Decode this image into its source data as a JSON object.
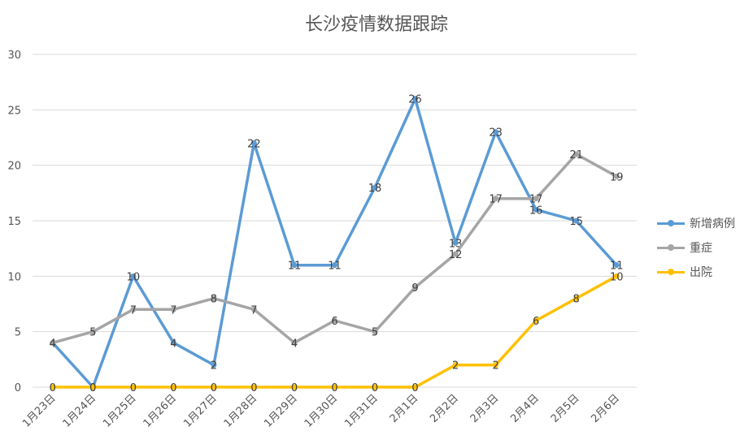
{
  "chart_data": {
    "type": "line",
    "title": "长沙疫情数据跟踪",
    "categories": [
      "1月23日",
      "1月24日",
      "1月25日",
      "1月26日",
      "1月27日",
      "1月28日",
      "1月29日",
      "1月30日",
      "1月31日",
      "2月1日",
      "2月2日",
      "2月3日",
      "2月4日",
      "2月5日",
      "2月6日"
    ],
    "ylim": [
      0,
      30
    ],
    "yticks": [
      "0",
      "5",
      "10",
      "15",
      "20",
      "25",
      "30"
    ],
    "grid": true,
    "legend_position": "right",
    "series": [
      {
        "name": "新增病例",
        "color": "#5b9bd5",
        "values": [
          4,
          0,
          10,
          4,
          2,
          22,
          11,
          11,
          18,
          26,
          13,
          23,
          16,
          15,
          11
        ]
      },
      {
        "name": "重症",
        "color": "#a5a5a5",
        "values": [
          4,
          5,
          7,
          7,
          8,
          7,
          4,
          6,
          5,
          9,
          12,
          17,
          17,
          21,
          19
        ]
      },
      {
        "name": "出院",
        "color": "#ffc000",
        "values": [
          0,
          0,
          0,
          0,
          0,
          0,
          0,
          0,
          0,
          0,
          2,
          2,
          6,
          8,
          10
        ]
      }
    ]
  }
}
